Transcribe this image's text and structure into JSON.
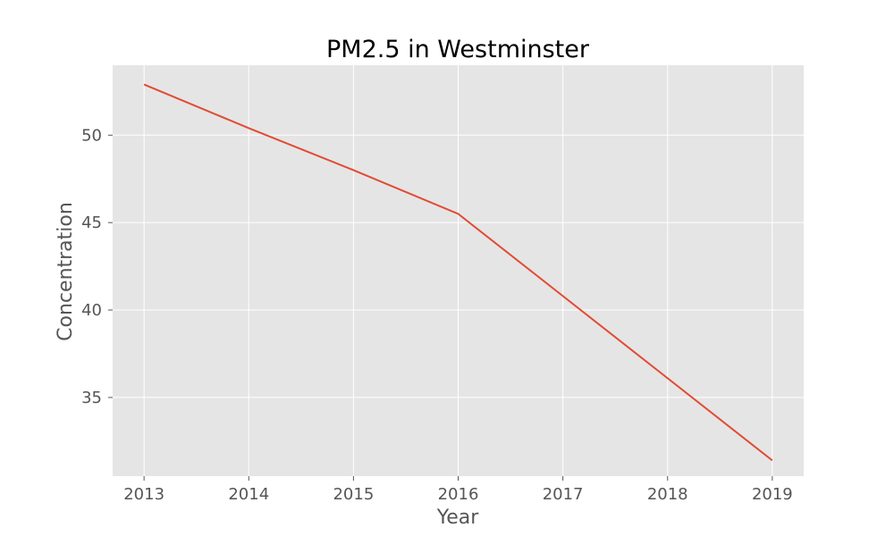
{
  "chart_data": {
    "type": "line",
    "title": "PM2.5 in Westminster",
    "xlabel": "Year",
    "ylabel": "Concentration",
    "x": [
      2013,
      2014,
      2015,
      2016,
      2017,
      2018,
      2019
    ],
    "x_tick_labels": [
      "2013",
      "2014",
      "2015",
      "2016",
      "2017",
      "2018",
      "2019"
    ],
    "series": [
      {
        "values": [
          52.9,
          50.4,
          48.0,
          45.5,
          40.8,
          36.1,
          31.4
        ],
        "color": "#E24A33"
      }
    ],
    "xlim": [
      2012.7,
      2019.3
    ],
    "ylim": [
      30.5,
      54.0
    ],
    "y_ticks": [
      35,
      40,
      45,
      50
    ],
    "y_tick_labels": [
      "35",
      "40",
      "45",
      "50"
    ],
    "grid": true,
    "style": {
      "plot_background": "#E5E5E5",
      "grid_color": "#FFFFFF",
      "tick_color": "#555555"
    }
  }
}
